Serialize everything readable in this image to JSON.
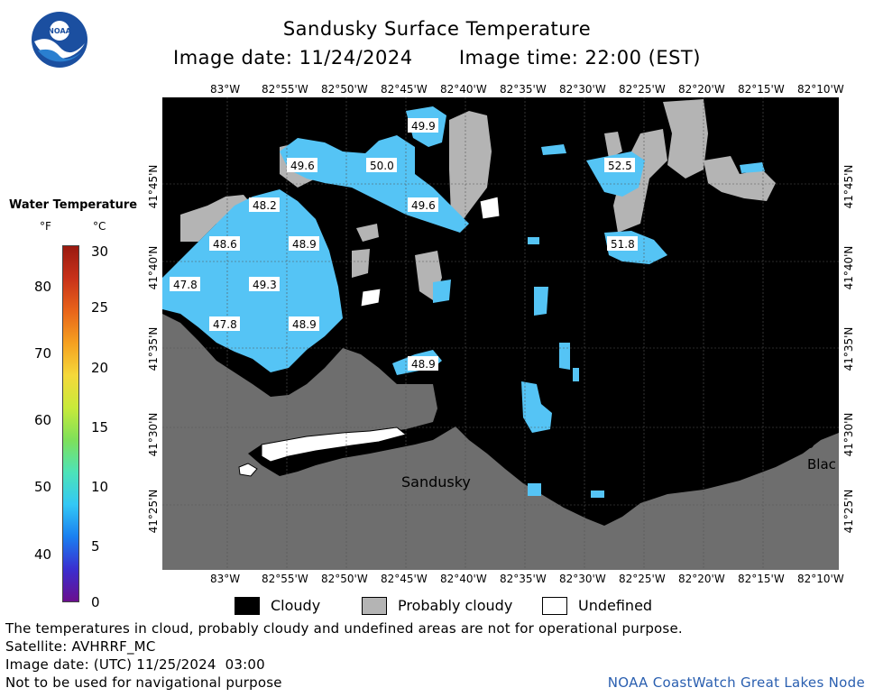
{
  "title": "Sandusky Surface Temperature",
  "image_date_label": "Image date: 11/24/2024",
  "image_time_label": "Image time: 22:00 (EST)",
  "logo_text": "NOAA",
  "colorbar": {
    "title": "Water Temperature",
    "unit_f": "°F",
    "unit_c": "°C",
    "f_ticks": [
      "40",
      "50",
      "60",
      "70",
      "80"
    ],
    "c_ticks": [
      "0",
      "5",
      "10",
      "15",
      "20",
      "25",
      "30"
    ],
    "colors": [
      "#6a0f8e",
      "#3a2fd0",
      "#1a7ff0",
      "#33c8f5",
      "#4de3b8",
      "#7ee05a",
      "#c8ea3a",
      "#f5d83a",
      "#f5a020",
      "#e8641a",
      "#c8321a",
      "#9a1a10"
    ]
  },
  "lon_labels": [
    "83°W",
    "82°55'W",
    "82°50'W",
    "82°45'W",
    "82°40'W",
    "82°35'W",
    "82°30'W",
    "82°25'W",
    "82°20'W",
    "82°15'W",
    "82°10'W"
  ],
  "lat_labels": [
    "41°45'N",
    "41°40'N",
    "41°35'N",
    "41°30'N",
    "41°25'N"
  ],
  "temperature_labels": [
    "49.9",
    "49.6",
    "50.0",
    "52.5",
    "48.2",
    "49.6",
    "48.6",
    "48.9",
    "51.8",
    "47.8",
    "49.3",
    "47.8",
    "48.9",
    "48.9"
  ],
  "place_labels": [
    "Sandusky",
    "Blac"
  ],
  "legend": {
    "cloudy": "Cloudy",
    "probably_cloudy": "Probably cloudy",
    "undefined": "Undefined"
  },
  "colors": {
    "cloudy": "#000000",
    "probably_cloudy": "#b4b4b4",
    "land": "#6e6e6e",
    "water": "#55c4f5",
    "water_light": "#6fd0f7"
  },
  "footer": {
    "disclaimer": "The temperatures in cloud, probably cloudy and undefined areas are not for operational purpose.",
    "satellite": "Satellite: AVHRRF_MC",
    "utc_date": "Image date: (UTC) 11/25/2024  03:00",
    "navigation": "Not to be used for navigational purpose",
    "node": "NOAA CoastWatch Great Lakes Node"
  }
}
